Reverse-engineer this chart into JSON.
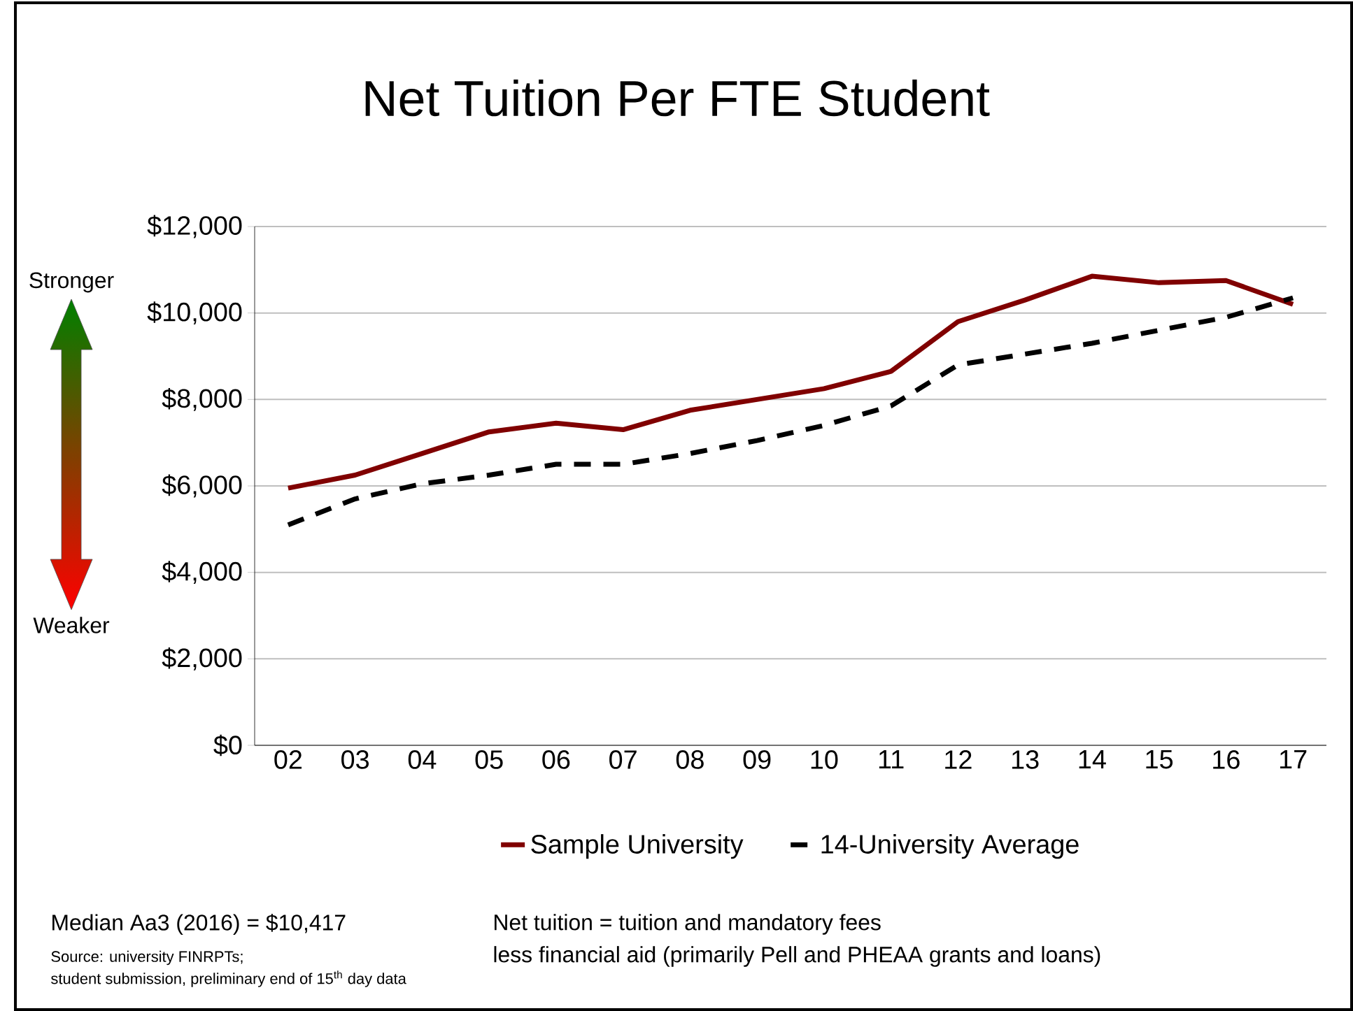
{
  "chart_data": {
    "type": "line",
    "title": "Net Tuition Per FTE Student",
    "categories": [
      "02",
      "03",
      "04",
      "05",
      "06",
      "07",
      "08",
      "09",
      "10",
      "11",
      "12",
      "13",
      "14",
      "15",
      "16",
      "17"
    ],
    "series": [
      {
        "name": "Sample University",
        "color": "#800000",
        "line_style": "solid",
        "values": [
          5950,
          6250,
          6750,
          7250,
          7450,
          7300,
          7750,
          8000,
          8250,
          8650,
          9800,
          10300,
          10850,
          10700,
          10750,
          10200
        ]
      },
      {
        "name": "14-University Average",
        "color": "#000000",
        "line_style": "dashed",
        "values": [
          5100,
          5700,
          6050,
          6250,
          6500,
          6500,
          6750,
          7050,
          7400,
          7850,
          8800,
          9050,
          9300,
          9600,
          9900,
          10350
        ]
      }
    ],
    "ylim": [
      0,
      12000
    ],
    "yticks": [
      {
        "value": 0,
        "label": "$0"
      },
      {
        "value": 2000,
        "label": "$2,000"
      },
      {
        "value": 4000,
        "label": "$4,000"
      },
      {
        "value": 6000,
        "label": "$6,000"
      },
      {
        "value": 8000,
        "label": "$8,000"
      },
      {
        "value": 10000,
        "label": "$10,000"
      },
      {
        "value": 12000,
        "label": "$12,000"
      }
    ],
    "grid": "y",
    "legend": "bottom",
    "marker": "none",
    "annotations": [
      "Stronger",
      "Weaker",
      "Median Aa3 (2016) = $10,417",
      "Source: university FINRPTs;",
      "student submission, preliminary end of 15$^{th}$ day data",
      "Net tuition = tuition and mandatory fees",
      "less financial aid (primarily Pell and PHEAA grants and loans)"
    ]
  }
}
